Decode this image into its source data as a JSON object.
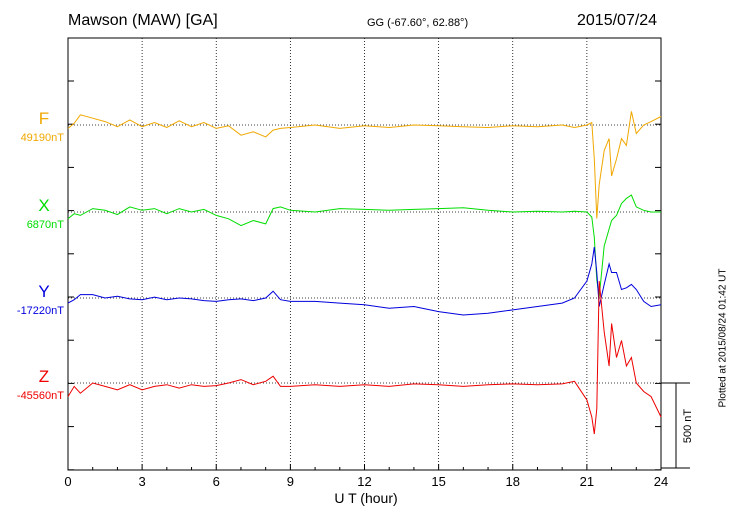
{
  "header": {
    "station": "Mawson (MAW)  [GA]",
    "coords": "GG (-67.60°,  62.88°)",
    "date": "2015/07/24"
  },
  "footnote": "Plotted at 2015/08/24 01:42 UT",
  "scale_label": "500 nT",
  "chart_data": {
    "type": "line",
    "xlabel": "U T (hour)",
    "xlim": [
      0,
      24
    ],
    "xticks": [
      0,
      3,
      6,
      9,
      12,
      15,
      18,
      21,
      24
    ],
    "xtick_labels": [
      "0",
      "3",
      "6",
      "9",
      "12",
      "15",
      "18",
      "21",
      "24"
    ],
    "scale_bar_nT": 500,
    "grid": true,
    "series": [
      {
        "name": "F",
        "baseline_label": "49190nT",
        "color": "#f0a800",
        "x": [
          0,
          0.25,
          0.5,
          1,
          1.5,
          2,
          2.5,
          3,
          3.5,
          4,
          4.5,
          5,
          5.5,
          6,
          6.5,
          7,
          7.5,
          8,
          8.3,
          8.6,
          9,
          10,
          11,
          12,
          13,
          14,
          15,
          16,
          17,
          18,
          19,
          20,
          20.5,
          21,
          21.2,
          21.3,
          21.4,
          21.5,
          21.7,
          21.9,
          22,
          22.2,
          22.4,
          22.6,
          22.8,
          23,
          23.3,
          23.6,
          24
        ],
        "y": [
          -20,
          10,
          60,
          40,
          20,
          -10,
          30,
          -10,
          15,
          -15,
          25,
          -10,
          15,
          -20,
          -5,
          -60,
          -40,
          -70,
          -30,
          -20,
          -15,
          0,
          -20,
          -5,
          -15,
          0,
          -5,
          -10,
          -15,
          -5,
          -10,
          0,
          -15,
          0,
          15,
          -200,
          -550,
          -350,
          -150,
          -80,
          -300,
          -200,
          -80,
          -120,
          80,
          -50,
          0,
          20,
          50
        ]
      },
      {
        "name": "X",
        "baseline_label": "6870nT",
        "color": "#00dd00",
        "x": [
          0,
          0.25,
          0.5,
          1,
          1.5,
          2,
          2.5,
          3,
          3.5,
          4,
          4.5,
          5,
          5.5,
          6,
          6.5,
          7,
          7.5,
          8,
          8.3,
          8.6,
          9,
          10,
          11,
          12,
          13,
          14,
          15,
          16,
          17,
          18,
          19,
          20,
          20.5,
          21,
          21.2,
          21.3,
          21.4,
          21.5,
          21.7,
          21.9,
          22,
          22.2,
          22.4,
          22.6,
          22.8,
          23,
          23.3,
          23.6,
          24
        ],
        "y": [
          -40,
          -10,
          -20,
          20,
          10,
          -15,
          30,
          10,
          20,
          -10,
          20,
          0,
          15,
          -20,
          -40,
          -80,
          -50,
          -70,
          20,
          30,
          10,
          0,
          20,
          15,
          10,
          15,
          20,
          25,
          10,
          0,
          5,
          0,
          5,
          0,
          -30,
          -150,
          -400,
          -500,
          -200,
          -100,
          -50,
          -20,
          50,
          80,
          100,
          30,
          10,
          0,
          0
        ]
      },
      {
        "name": "Y",
        "baseline_label": "-17220nT",
        "color": "#0000dd",
        "x": [
          0,
          0.25,
          0.5,
          1,
          1.5,
          2,
          2.5,
          3,
          3.5,
          4,
          4.5,
          5,
          5.5,
          6,
          6.5,
          7,
          7.5,
          8,
          8.3,
          8.6,
          9,
          10,
          11,
          12,
          13,
          14,
          15,
          16,
          17,
          18,
          19,
          20,
          20.5,
          21,
          21.2,
          21.3,
          21.4,
          21.5,
          21.7,
          21.9,
          22,
          22.2,
          22.4,
          22.6,
          22.8,
          23,
          23.3,
          23.6,
          24
        ],
        "y": [
          -30,
          -10,
          20,
          20,
          0,
          10,
          -5,
          -10,
          5,
          -10,
          0,
          -5,
          -15,
          -20,
          -10,
          -5,
          -15,
          0,
          40,
          -10,
          -20,
          -20,
          -30,
          -40,
          -60,
          -50,
          -80,
          -100,
          -90,
          -70,
          -50,
          -30,
          0,
          100,
          200,
          300,
          150,
          -50,
          80,
          200,
          150,
          150,
          50,
          60,
          80,
          50,
          -20,
          -50,
          -40
        ]
      },
      {
        "name": "Z",
        "baseline_label": "-45560nT",
        "color": "#ee0000",
        "x": [
          0,
          0.25,
          0.5,
          1,
          1.5,
          2,
          2.5,
          3,
          3.5,
          4,
          4.5,
          5,
          5.5,
          6,
          6.5,
          7,
          7.5,
          8,
          8.3,
          8.6,
          9,
          10,
          11,
          12,
          13,
          14,
          15,
          16,
          17,
          18,
          19,
          20,
          20.5,
          21,
          21.2,
          21.3,
          21.4,
          21.5,
          21.7,
          21.9,
          22,
          22.2,
          22.4,
          22.6,
          22.8,
          23,
          23.3,
          23.6,
          24
        ],
        "y": [
          -80,
          -20,
          -60,
          0,
          -20,
          -40,
          -10,
          -40,
          -20,
          -10,
          -30,
          -10,
          -20,
          -15,
          0,
          20,
          -10,
          10,
          40,
          -20,
          -20,
          -10,
          -20,
          -10,
          -20,
          -5,
          -10,
          -20,
          -10,
          -5,
          -10,
          -5,
          10,
          -100,
          -200,
          -300,
          -150,
          600,
          300,
          100,
          350,
          150,
          250,
          100,
          150,
          0,
          -50,
          -80,
          -200
        ]
      }
    ]
  }
}
